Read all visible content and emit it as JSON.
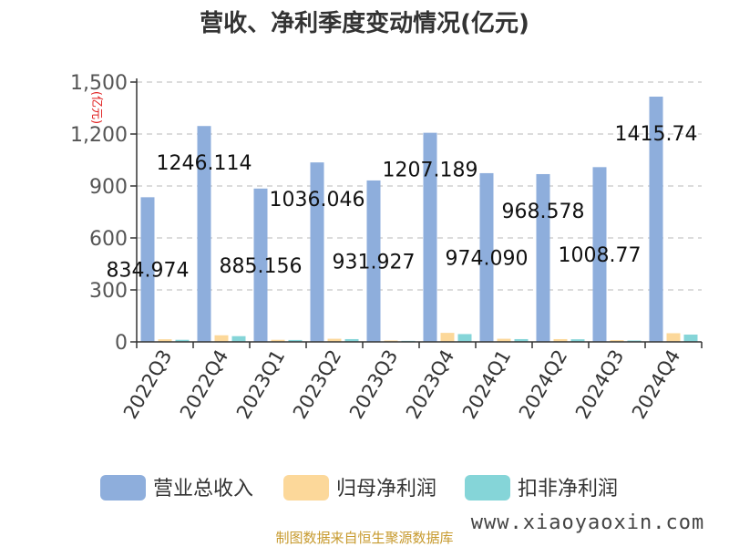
{
  "chart_data": {
    "type": "bar",
    "title": "营收、净利季度变动情况(亿元)",
    "unit_label": "(亿元)",
    "categories": [
      "2022Q3",
      "2022Q4",
      "2023Q1",
      "2023Q2",
      "2023Q3",
      "2023Q4",
      "2024Q1",
      "2024Q2",
      "2024Q3",
      "2024Q4"
    ],
    "ylim": [
      0,
      1500
    ],
    "yticks": [
      0,
      300,
      600,
      900,
      1200,
      1500
    ],
    "ytick_labels": [
      "0",
      "300",
      "600",
      "900",
      "1,200",
      "1,500"
    ],
    "grid": true,
    "legend_position": "bottom",
    "series": [
      {
        "name": "营业总收入",
        "color": "#8eaedc",
        "values": [
          834.974,
          1246.114,
          885.156,
          1036.046,
          931.927,
          1207.189,
          974.09,
          968.578,
          1008.77,
          1415.74
        ],
        "labels": [
          "834.974",
          "1246.114",
          "885.156",
          "1036.046",
          "931.927",
          "1207.189",
          "974.090",
          "968.578",
          "1008.77",
          "1415.74"
        ]
      },
      {
        "name": "归母净利润",
        "color": "#fcd89a",
        "values": [
          15,
          38,
          12,
          18,
          8,
          52,
          18,
          16,
          10,
          50
        ]
      },
      {
        "name": "扣非净利润",
        "color": "#85d5d8",
        "values": [
          12,
          33,
          11,
          16,
          6,
          45,
          16,
          15,
          8,
          42
        ]
      }
    ]
  },
  "source_text": "制图数据来自恒生聚源数据库",
  "watermark_text": "www.xiaoyaoxin.com"
}
